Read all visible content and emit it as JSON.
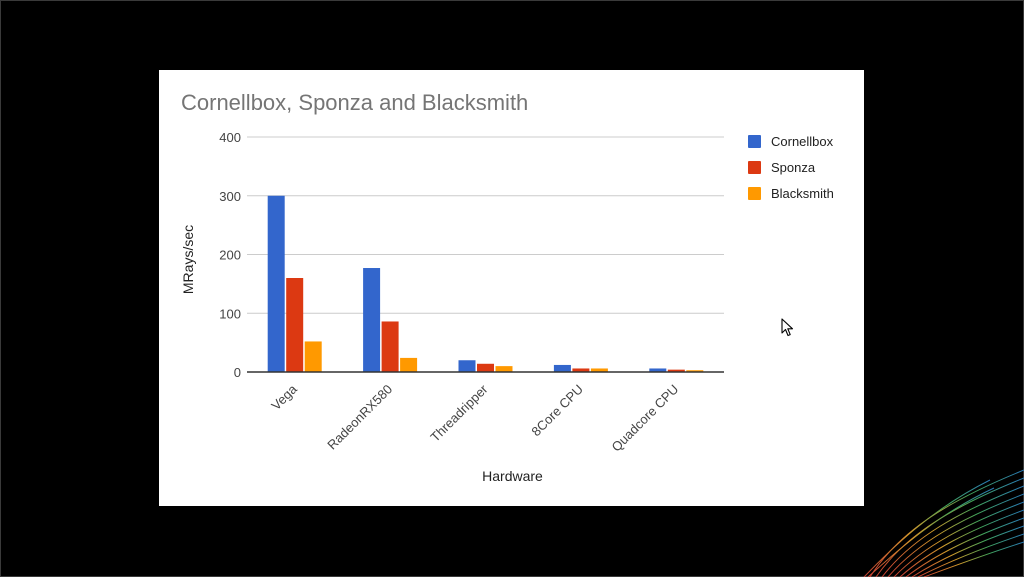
{
  "chart_data": {
    "type": "bar",
    "title": "Cornellbox, Sponza and Blacksmith",
    "xlabel": "Hardware",
    "ylabel": "MRays/sec",
    "ylim": [
      0,
      400
    ],
    "yticks": [
      0,
      100,
      200,
      300,
      400
    ],
    "categories": [
      "Vega",
      "RadeonRX580",
      "Threadripper",
      "8Core CPU",
      "Quadcore CPU"
    ],
    "series": [
      {
        "name": "Cornellbox",
        "color": "#3366cc",
        "values": [
          300,
          177,
          20,
          12,
          6
        ]
      },
      {
        "name": "Sponza",
        "color": "#dc3912",
        "values": [
          160,
          86,
          14,
          6,
          4
        ]
      },
      {
        "name": "Blacksmith",
        "color": "#ff9900",
        "values": [
          52,
          24,
          10,
          6,
          3
        ]
      }
    ],
    "grid": true,
    "legend_position": "right"
  },
  "icons": {
    "cursor": "mouse-pointer-icon",
    "decoration": "colorful-wave-lines-icon"
  }
}
